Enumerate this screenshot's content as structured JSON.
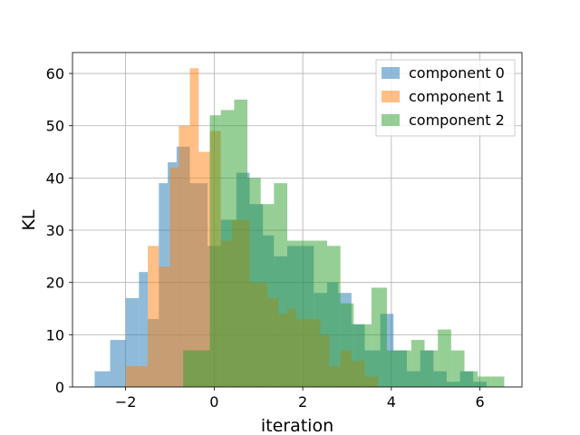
{
  "chart_data": {
    "type": "histogram",
    "xlabel": "iteration",
    "ylabel": "KL",
    "xlim": [
      -3.2,
      6.95
    ],
    "ylim": [
      0,
      64
    ],
    "xticks": [
      -2,
      0,
      2,
      4,
      6
    ],
    "xtick_labels": [
      "−2",
      "0",
      "2",
      "4",
      "6"
    ],
    "yticks": [
      0,
      10,
      20,
      30,
      40,
      50,
      60
    ],
    "ytick_labels": [
      "0",
      "10",
      "20",
      "30",
      "40",
      "50",
      "60"
    ],
    "grid": true,
    "legend_placement": "top-right",
    "alpha": 0.5,
    "series": [
      {
        "name": "component 0",
        "color": "#1f77b4",
        "bin_edges": [
          -2.7,
          -2.35,
          -2.0,
          -1.7,
          -1.5,
          -1.25,
          -1.05,
          -0.85,
          -0.55,
          -0.15,
          0.15,
          0.5,
          0.8,
          1.1,
          1.35,
          1.65,
          1.95,
          2.25,
          2.55,
          2.8,
          3.1,
          3.4,
          3.75,
          4.05,
          4.35,
          4.65,
          4.95,
          5.25,
          5.55,
          5.85,
          6.15,
          6.45
        ],
        "counts": [
          3,
          9,
          17,
          22,
          13,
          39,
          43,
          46,
          39,
          27,
          32,
          41,
          35,
          29,
          25,
          27,
          27,
          18,
          20,
          18,
          12,
          7,
          14,
          7,
          3,
          7,
          3,
          1,
          3,
          1,
          0
        ]
      },
      {
        "name": "component 1",
        "color": "#ff7f0e",
        "bin_edges": [
          -2.0,
          -1.5,
          -1.25,
          -1.0,
          -0.8,
          -0.55,
          -0.35,
          -0.1,
          0.15,
          0.4,
          0.8,
          1.2,
          1.45,
          1.65,
          1.85,
          2.1,
          2.4,
          2.6,
          2.85,
          3.1,
          3.4,
          3.7
        ],
        "counts": [
          4,
          27,
          23,
          42,
          50,
          61,
          45,
          49,
          28,
          32,
          20,
          17,
          14,
          15,
          13,
          13,
          10,
          4,
          7,
          5,
          2
        ]
      },
      {
        "name": "component 2",
        "color": "#2ca02c",
        "bin_edges": [
          -0.7,
          -0.1,
          0.15,
          0.45,
          0.75,
          1.05,
          1.35,
          1.65,
          1.95,
          2.25,
          2.55,
          2.85,
          3.15,
          3.55,
          3.9,
          4.15,
          4.45,
          4.75,
          5.05,
          5.35,
          5.65,
          5.95,
          6.25,
          6.55
        ],
        "counts": [
          7,
          52,
          53,
          55,
          40,
          35,
          39,
          28,
          28,
          28,
          27,
          16,
          12,
          19,
          7,
          7,
          9,
          7,
          11,
          7,
          3,
          2,
          2
        ]
      }
    ]
  }
}
